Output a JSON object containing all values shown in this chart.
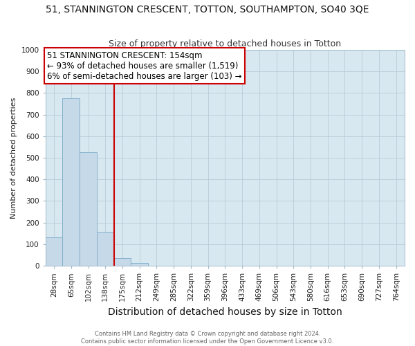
{
  "title": "51, STANNINGTON CRESCENT, TOTTON, SOUTHAMPTON, SO40 3QE",
  "subtitle": "Size of property relative to detached houses in Totton",
  "xlabel": "Distribution of detached houses by size in Totton",
  "ylabel": "Number of detached properties",
  "footer_line1": "Contains HM Land Registry data © Crown copyright and database right 2024.",
  "footer_line2": "Contains public sector information licensed under the Open Government Licence v3.0.",
  "bins": [
    "28sqm",
    "65sqm",
    "102sqm",
    "138sqm",
    "175sqm",
    "212sqm",
    "249sqm",
    "285sqm",
    "322sqm",
    "359sqm",
    "396sqm",
    "433sqm",
    "469sqm",
    "506sqm",
    "543sqm",
    "580sqm",
    "616sqm",
    "653sqm",
    "690sqm",
    "727sqm",
    "764sqm"
  ],
  "values": [
    132,
    775,
    525,
    158,
    36,
    12,
    0,
    0,
    0,
    0,
    0,
    0,
    0,
    0,
    0,
    0,
    0,
    0,
    0,
    0,
    0
  ],
  "bar_color": "#c6d9e8",
  "bar_edge_color": "#7aaac8",
  "vline_x": 3.5,
  "vline_color": "#cc0000",
  "annotation_line1": "51 STANNINGTON CRESCENT: 154sqm",
  "annotation_line2": "← 93% of detached houses are smaller (1,519)",
  "annotation_line3": "6% of semi-detached houses are larger (103) →",
  "annotation_box_color": "#ffffff",
  "annotation_box_edge_color": "#cc0000",
  "ylim": [
    0,
    1000
  ],
  "yticks": [
    0,
    100,
    200,
    300,
    400,
    500,
    600,
    700,
    800,
    900,
    1000
  ],
  "background_color": "#ffffff",
  "plot_bg_color": "#d8e8f0",
  "grid_color": "#b8ccd8",
  "title_fontsize": 10,
  "subtitle_fontsize": 9,
  "xlabel_fontsize": 10,
  "ylabel_fontsize": 8,
  "tick_fontsize": 7.5,
  "annotation_fontsize": 8.5,
  "footer_fontsize": 6
}
